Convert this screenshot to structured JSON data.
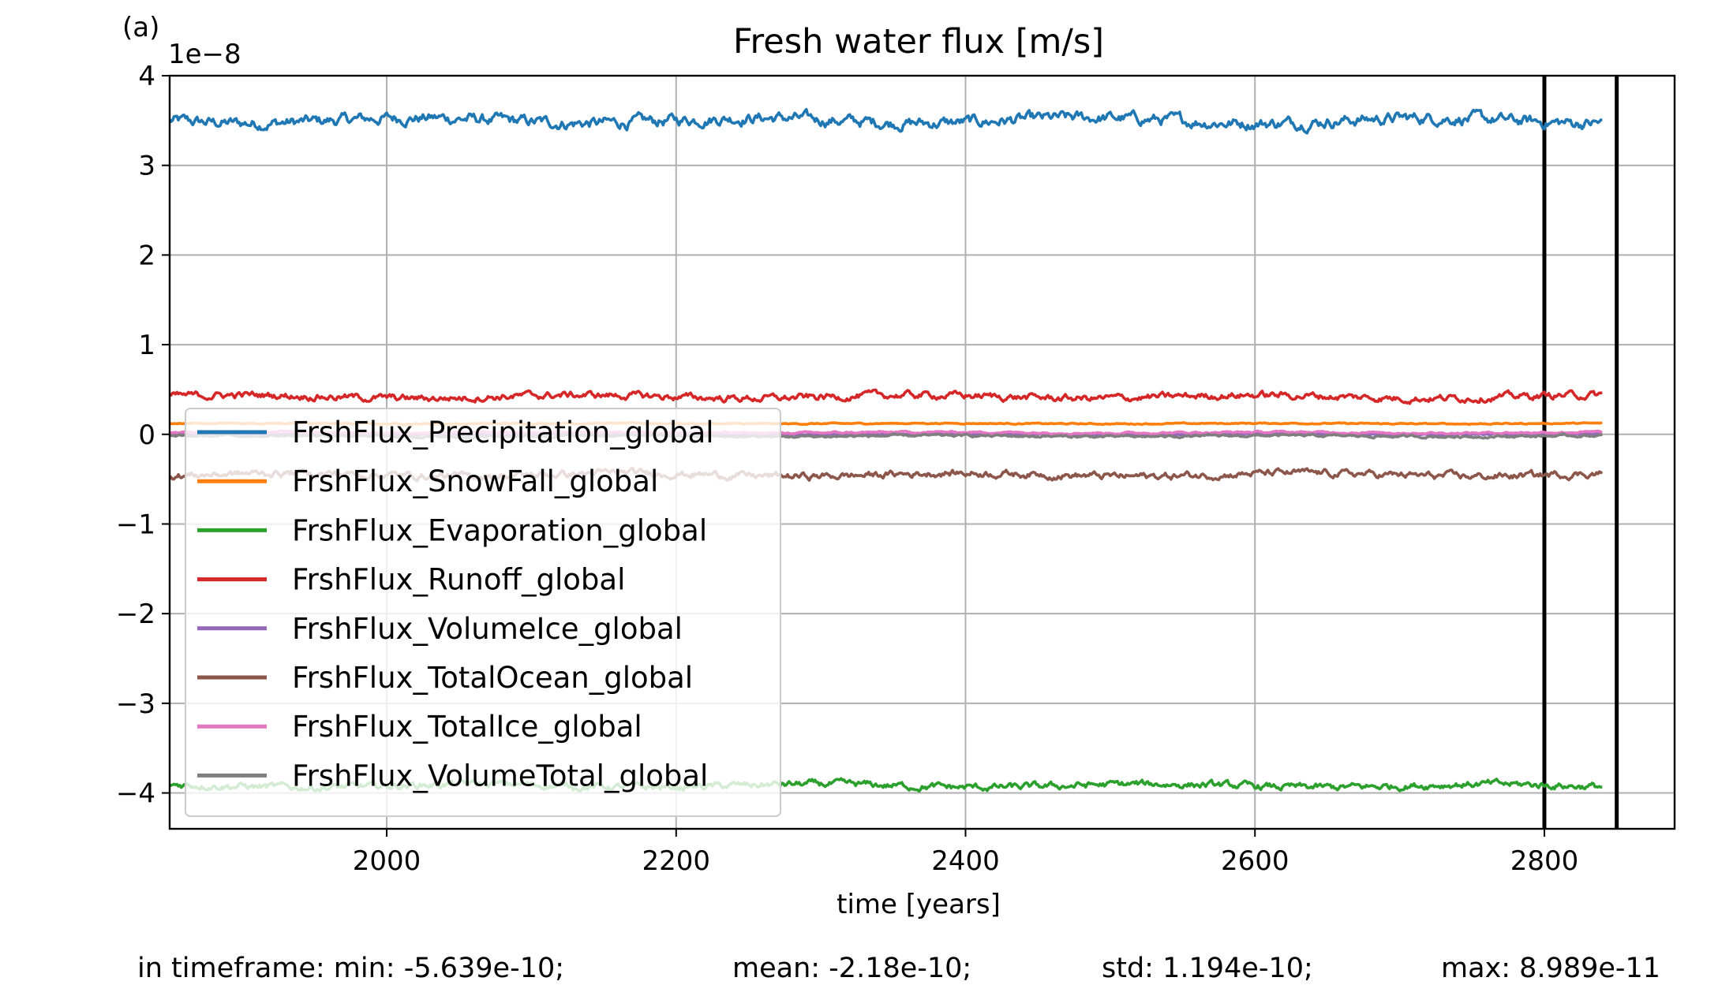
{
  "panel_label": "(a)",
  "chart_data": {
    "type": "line",
    "title": "Fresh water flux [m/s]",
    "xlabel": "time [years]",
    "ylabel": "",
    "y_offset_text": "1e−8",
    "y_scale_exponent": -8,
    "xlim": [
      1850,
      2890
    ],
    "ylim": [
      -4.4,
      4.0
    ],
    "x_ticks": [
      2000,
      2200,
      2400,
      2600,
      2800
    ],
    "x_tick_labels": [
      "2000",
      "2200",
      "2400",
      "2600",
      "2800"
    ],
    "y_ticks": [
      -4,
      -3,
      -2,
      -1,
      0,
      1,
      2,
      3,
      4
    ],
    "y_tick_labels": [
      "−4",
      "−3",
      "−2",
      "−1",
      "0",
      "1",
      "2",
      "3",
      "4"
    ],
    "grid": true,
    "legend_position": "lower-left",
    "vertical_lines": [
      2800,
      2850
    ],
    "x_range": [
      1850,
      2840
    ],
    "series": [
      {
        "name": "FrshFlux_Precipitation_global",
        "color": "#1f77b4",
        "mean": 3.5,
        "noise": 0.05
      },
      {
        "name": "FrshFlux_SnowFall_global",
        "color": "#ff7f0e",
        "mean": 0.12,
        "noise": 0.005
      },
      {
        "name": "FrshFlux_Evaporation_global",
        "color": "#2ca02c",
        "mean": -3.92,
        "noise": 0.03
      },
      {
        "name": "FrshFlux_Runoff_global",
        "color": "#d62728",
        "mean": 0.42,
        "noise": 0.03
      },
      {
        "name": "FrshFlux_VolumeIce_global",
        "color": "#9467bd",
        "mean": 0.0,
        "noise": 0.005
      },
      {
        "name": "FrshFlux_TotalOcean_global",
        "color": "#8c564b",
        "mean": -0.45,
        "noise": 0.03
      },
      {
        "name": "FrshFlux_TotalIce_global",
        "color": "#e377c2",
        "mean": 0.02,
        "noise": 0.008
      },
      {
        "name": "FrshFlux_VolumeTotal_global",
        "color": "#7f7f7f",
        "mean": -0.02,
        "noise": 0.01
      }
    ]
  },
  "stats": {
    "min": "in timeframe: min: -5.639e-10;",
    "mean": "mean: -2.18e-10;",
    "std": "std: 1.194e-10;",
    "max": "max: 8.989e-11"
  }
}
